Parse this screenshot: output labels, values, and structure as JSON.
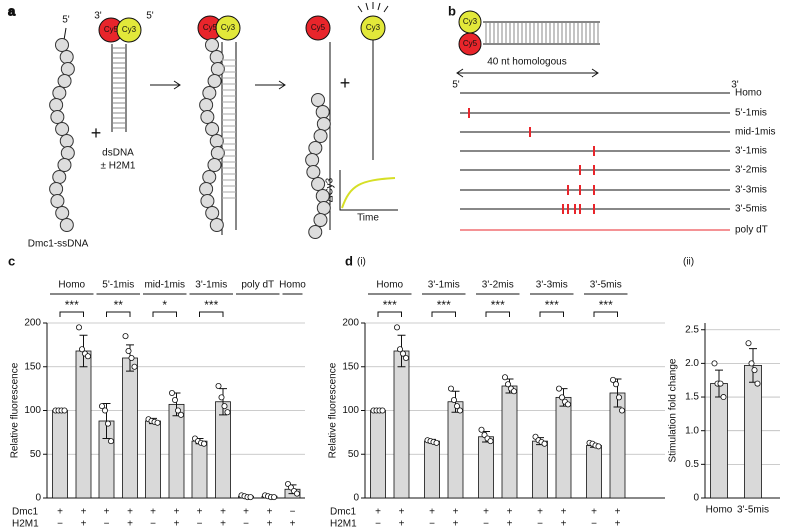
{
  "panel_a": {
    "label": "a",
    "ss_5": "5'",
    "ds_3": "3'",
    "ds_5": "5'",
    "cy5": "Cy5",
    "cy3": "Cy3",
    "dsdna": "dsDNA",
    "h2m1": "± H2M1",
    "filament": "Dmc1-ssDNA",
    "plus": "+",
    "inset_y": "ΔCy3",
    "inset_x": "Time"
  },
  "panel_b": {
    "label": "b",
    "cy3": "Cy3",
    "cy5": "Cy5",
    "span": "40 nt homologous",
    "end5": "5'",
    "end3": "3'",
    "rows": [
      "Homo",
      "5'-1mis",
      "mid-1mis",
      "3'-1mis",
      "3'-2mis",
      "3'-3mis",
      "3'-5mis",
      "poly dT"
    ]
  },
  "chart_data": [
    {
      "type": "bar",
      "label": "c",
      "ylabel": "Relative fluorescence",
      "ylim": [
        0,
        200
      ],
      "yticks": [
        0,
        50,
        100,
        150,
        200
      ],
      "grid": true,
      "color": "#d9d9d9",
      "group_label_position": "top",
      "row_labels": [
        "Dmc1",
        "H2M1"
      ],
      "groups": [
        {
          "name": "Homo",
          "significance": "***",
          "bars": [
            {
              "signs": [
                "+",
                "−"
              ],
              "value": 100,
              "points": [
                100,
                100,
                100,
                100
              ]
            },
            {
              "signs": [
                "+",
                "+"
              ],
              "value": 168,
              "error": 18,
              "points": [
                195,
                170,
                165,
                162
              ]
            }
          ]
        },
        {
          "name": "5'-1mis",
          "significance": "**",
          "bars": [
            {
              "signs": [
                "+",
                "−"
              ],
              "value": 88,
              "error": 20,
              "points": [
                105,
                100,
                85,
                65
              ]
            },
            {
              "signs": [
                "+",
                "+"
              ],
              "value": 160,
              "error": 15,
              "points": [
                185,
                168,
                160,
                150
              ]
            }
          ]
        },
        {
          "name": "mid-1mis",
          "significance": "*",
          "bars": [
            {
              "signs": [
                "+",
                "−"
              ],
              "value": 88,
              "error": 3,
              "points": [
                90,
                88,
                87,
                86
              ]
            },
            {
              "signs": [
                "+",
                "+"
              ],
              "value": 107,
              "error": 13,
              "points": [
                120,
                112,
                100,
                95
              ]
            }
          ]
        },
        {
          "name": "3'-1mis",
          "significance": "***",
          "bars": [
            {
              "signs": [
                "+",
                "−"
              ],
              "value": 65,
              "error": 3,
              "points": [
                68,
                65,
                63,
                62
              ]
            },
            {
              "signs": [
                "+",
                "+"
              ],
              "value": 110,
              "error": 15,
              "points": [
                128,
                115,
                105,
                98
              ]
            }
          ]
        },
        {
          "name": "poly dT",
          "bars": [
            {
              "signs": [
                "+",
                "−"
              ],
              "value": 2,
              "error": 1,
              "points": [
                3,
                2,
                1,
                1
              ]
            },
            {
              "signs": [
                "+",
                "+"
              ],
              "value": 2,
              "error": 1,
              "points": [
                3,
                2,
                1,
                1
              ]
            }
          ]
        },
        {
          "name": "Homo",
          "bars": [
            {
              "signs": [
                "−",
                "+"
              ],
              "value": 10,
              "error": 5,
              "points": [
                16,
                12,
                8,
                5
              ]
            }
          ]
        }
      ]
    },
    {
      "type": "bar",
      "label": "d",
      "sublabel": "(i)",
      "ylabel": "Relative fluorescence",
      "ylim": [
        0,
        200
      ],
      "yticks": [
        0,
        50,
        100,
        150,
        200
      ],
      "grid": true,
      "color": "#d9d9d9",
      "group_label_position": "top",
      "row_labels": [
        "Dmc1",
        "H2M1"
      ],
      "groups": [
        {
          "name": "Homo",
          "significance": "***",
          "bars": [
            {
              "signs": [
                "+",
                "−"
              ],
              "value": 100,
              "points": [
                100,
                100,
                100,
                100
              ]
            },
            {
              "signs": [
                "+",
                "+"
              ],
              "value": 168,
              "error": 18,
              "points": [
                195,
                170,
                165,
                160
              ]
            }
          ]
        },
        {
          "name": "3'-1mis",
          "significance": "***",
          "bars": [
            {
              "signs": [
                "+",
                "−"
              ],
              "value": 65,
              "error": 2,
              "points": [
                66,
                65,
                64,
                63
              ]
            },
            {
              "signs": [
                "+",
                "+"
              ],
              "value": 110,
              "error": 12,
              "points": [
                125,
                112,
                105,
                100
              ]
            }
          ]
        },
        {
          "name": "3'-2mis",
          "significance": "***",
          "bars": [
            {
              "signs": [
                "+",
                "−"
              ],
              "value": 70,
              "error": 6,
              "points": [
                78,
                72,
                68,
                65
              ]
            },
            {
              "signs": [
                "+",
                "+"
              ],
              "value": 128,
              "error": 8,
              "points": [
                138,
                130,
                125,
                122
              ]
            }
          ]
        },
        {
          "name": "3'-3mis",
          "significance": "***",
          "bars": [
            {
              "signs": [
                "+",
                "−"
              ],
              "value": 65,
              "error": 4,
              "points": [
                70,
                66,
                64,
                62
              ]
            },
            {
              "signs": [
                "+",
                "+"
              ],
              "value": 115,
              "error": 10,
              "points": [
                125,
                115,
                110,
                107
              ]
            }
          ]
        },
        {
          "name": "3'-5mis",
          "significance": "***",
          "bars": [
            {
              "signs": [
                "+",
                "−"
              ],
              "value": 60,
              "error": 2,
              "points": [
                63,
                62,
                60,
                59
              ]
            },
            {
              "signs": [
                "+",
                "+"
              ],
              "value": 120,
              "error": 16,
              "points": [
                135,
                130,
                115,
                100
              ]
            }
          ]
        }
      ]
    },
    {
      "type": "bar",
      "sublabel": "(ii)",
      "ylabel": "Stimulation fold change",
      "ylim": [
        0,
        2.6
      ],
      "yticks": [
        0,
        0.5,
        {
          "value": 1,
          "label": "1.0"
        },
        1.5,
        {
          "value": 2,
          "label": "2.0"
        },
        2.5
      ],
      "grid": true,
      "color": "#d9d9d9",
      "group_label_position": "bottom",
      "groups": [
        {
          "name": "Homo",
          "bars": [
            {
              "value": 1.7,
              "error": 0.2,
              "points": [
                2.0,
                1.7,
                1.7,
                1.5
              ]
            }
          ]
        },
        {
          "name": "3'-5mis",
          "bars": [
            {
              "value": 1.97,
              "error": 0.25,
              "points": [
                2.3,
                2.0,
                1.9,
                1.7
              ]
            }
          ]
        }
      ]
    }
  ]
}
